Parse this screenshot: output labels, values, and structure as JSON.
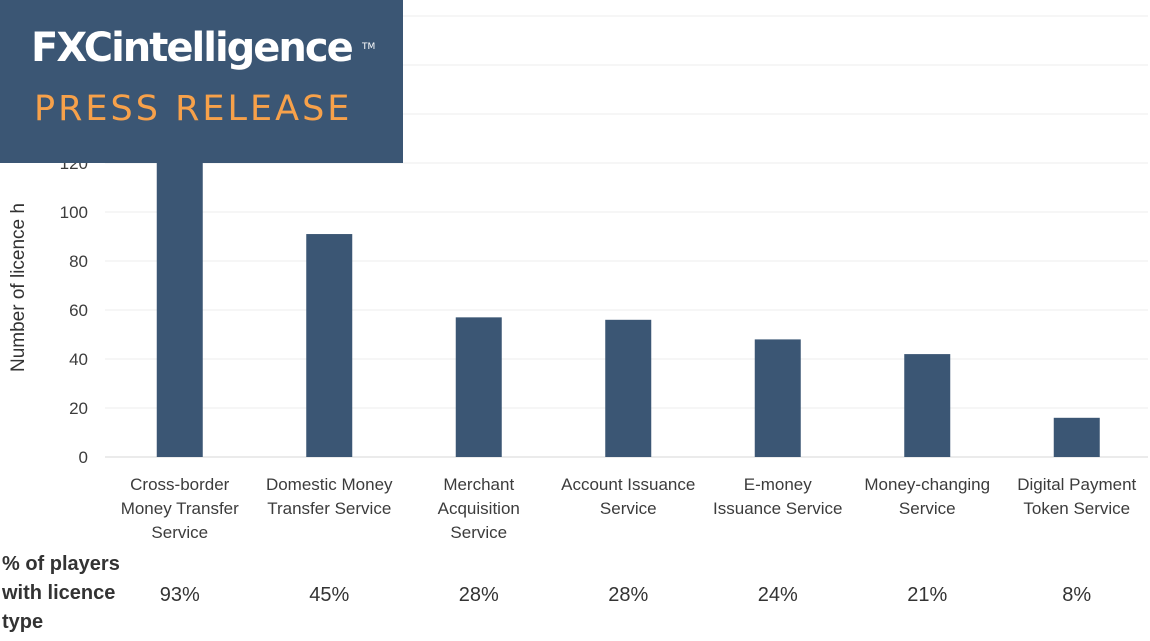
{
  "banner": {
    "brand": "FXCintelligence",
    "trademark": "TM",
    "subtitle": "PRESS RELEASE"
  },
  "colors": {
    "bar": "#3b5674",
    "banner_bg": "#3b5674",
    "banner_accent": "#f7a14a",
    "axis_text": "#3c3c3c"
  },
  "chart_data": {
    "type": "bar",
    "ylabel": "Number of licence h",
    "y_ticks": [
      0,
      20,
      40,
      60,
      80,
      100,
      120
    ],
    "ylim": [
      0,
      180
    ],
    "grid": true,
    "categories": [
      [
        "Cross-border",
        "Money Transfer",
        "Service"
      ],
      [
        "Domestic Money",
        "Transfer Service"
      ],
      [
        "Merchant",
        "Acquisition",
        "Service"
      ],
      [
        "Account Issuance",
        "Service"
      ],
      [
        "E-money",
        "Issuance Service"
      ],
      [
        "Money-changing",
        "Service"
      ],
      [
        "Digital Payment",
        "Token Service"
      ]
    ],
    "values": [
      170,
      91,
      57,
      56,
      48,
      42,
      16
    ],
    "share_label": [
      "% of players",
      "with licence",
      "type"
    ],
    "shares": [
      "93%",
      "45%",
      "28%",
      "28%",
      "24%",
      "21%",
      "8%"
    ]
  }
}
